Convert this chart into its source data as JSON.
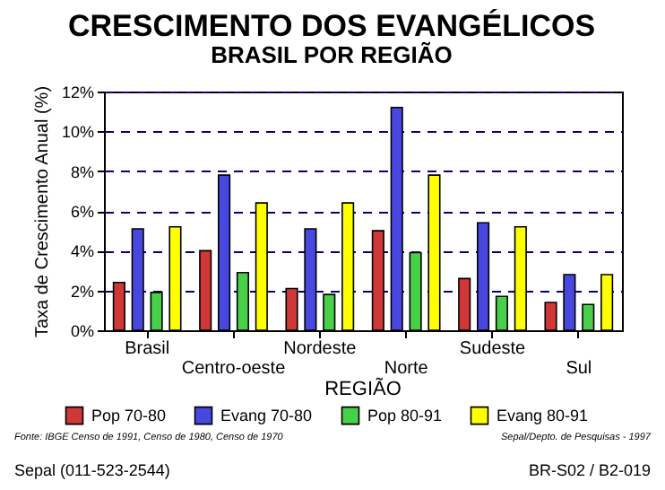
{
  "chart_data": {
    "type": "bar",
    "title": "CRESCIMENTO DOS EVANGÉLICOS",
    "subtitle": "BRASIL POR REGIÃO",
    "xlabel": "REGIÃO",
    "ylabel": "Taxa de Crescimento Anual (%)",
    "categories": [
      "Brasil",
      "Centro-oeste",
      "Nordeste",
      "Norte",
      "Sudeste",
      "Sul"
    ],
    "series": [
      {
        "name": "Pop 70-80",
        "color": "#d03838",
        "values": [
          2.4,
          4.0,
          2.1,
          5.0,
          2.6,
          1.4
        ]
      },
      {
        "name": "Evang 70-80",
        "color": "#4848e0",
        "values": [
          5.1,
          7.8,
          5.1,
          11.2,
          5.4,
          2.8
        ]
      },
      {
        "name": "Pop 80-91",
        "color": "#48d048",
        "values": [
          1.9,
          2.9,
          1.8,
          3.9,
          1.7,
          1.3
        ]
      },
      {
        "name": "Evang 80-91",
        "color": "#ffff00",
        "values": [
          5.2,
          6.4,
          6.4,
          7.8,
          5.2,
          2.8
        ]
      }
    ],
    "ylim": [
      0,
      12
    ],
    "yticks": [
      {
        "value": 0,
        "label": "0%"
      },
      {
        "value": 2,
        "label": "2%"
      },
      {
        "value": 4,
        "label": "4%"
      },
      {
        "value": 6,
        "label": "6%"
      },
      {
        "value": 8,
        "label": "8%"
      },
      {
        "value": 10,
        "label": "10%"
      },
      {
        "value": 12,
        "label": "12%"
      }
    ],
    "grid": "y",
    "legend": "bottom",
    "annotations": [
      "Fonte: IBGE Censo de 1991, Censo de 1980, Censo de 1970",
      "Sepal/Depto. de Pesquisas - 1997",
      "Sepal (011-523-2544)",
      "BR-S02 / B2-019"
    ]
  }
}
